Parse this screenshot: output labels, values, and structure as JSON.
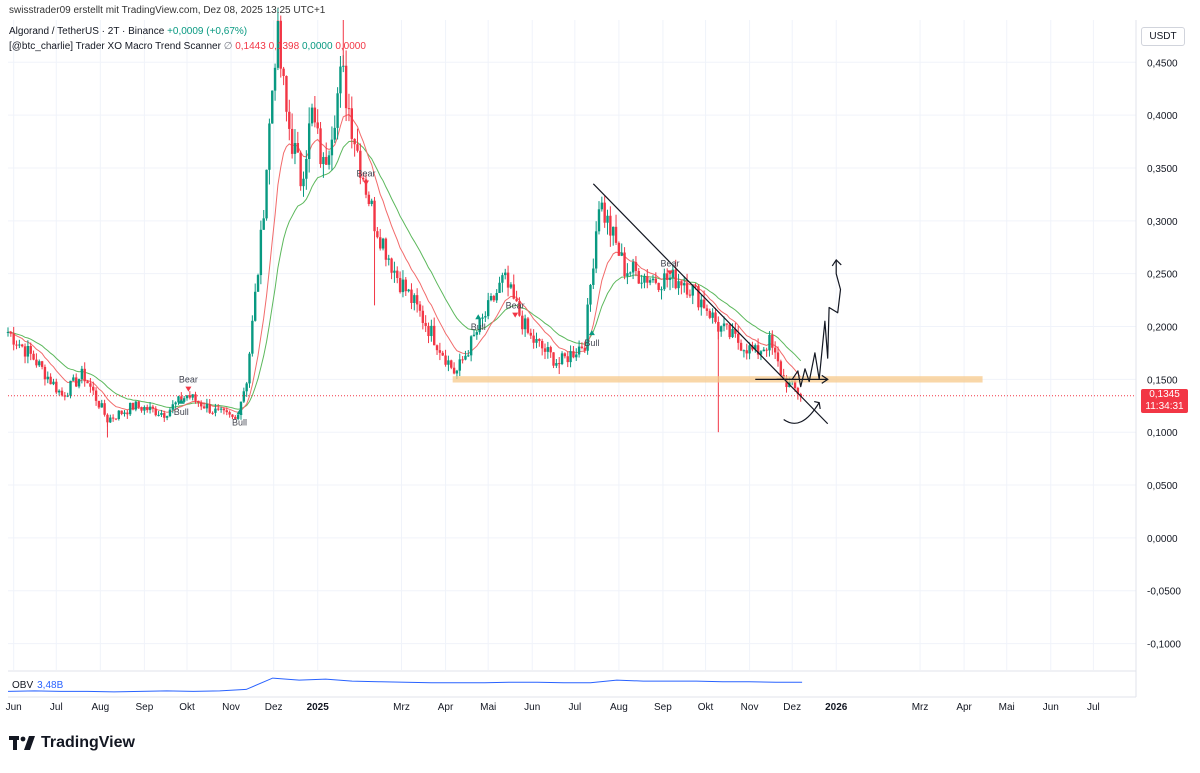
{
  "header": {
    "credit": "swisstrader09 erstellt mit TradingView.com, Dez 08, 2025 13:25 UTC+1",
    "symbol": "Algorand / TetherUS · 2T · Binance",
    "change": "+0,0009 (+0,67%)",
    "indicator": "[@btc_charlie] Trader XO Macro Trend Scanner",
    "indicator_values": [
      "0,1443",
      "0,1398",
      "0,0000",
      "0,0000"
    ]
  },
  "currency_badge": "USDT",
  "price_badge": {
    "price": "0,1345",
    "countdown": "11:34:31"
  },
  "obv": {
    "label": "OBV",
    "value": "3,48B"
  },
  "footer": {
    "brand": "TradingView"
  },
  "colors": {
    "up": "#089981",
    "down": "#f23645",
    "fast_ema": "#f26b6b",
    "slow_ema": "#5cb85c",
    "support_zone": "#f7c98b",
    "obv": "#2962ff",
    "grid": "#f0f3fa"
  },
  "chart_data": {
    "type": "line",
    "series_kind": "candlestick",
    "title": "Algorand / TetherUS · 2T · Binance",
    "xlabel": "",
    "ylabel": "",
    "ylim": [
      -0.125,
      0.49
    ],
    "xlim": [
      "2024-05-28",
      "2026-07-31"
    ],
    "y_ticks": [
      "0,4500",
      "0,4000",
      "0,3500",
      "0,3000",
      "0,2500",
      "0,2000",
      "0,1500",
      "0,1000",
      "0,0500",
      "0,0000",
      "-0,0500",
      "-0,1000"
    ],
    "y_tick_values": [
      0.45,
      0.4,
      0.35,
      0.3,
      0.25,
      0.2,
      0.15,
      0.1,
      0.05,
      0.0,
      -0.05,
      -0.1
    ],
    "x_ticks": [
      {
        "label": "Jun",
        "date": "2024-06-01"
      },
      {
        "label": "Jul",
        "date": "2024-07-01"
      },
      {
        "label": "Aug",
        "date": "2024-08-01"
      },
      {
        "label": "Sep",
        "date": "2024-09-01"
      },
      {
        "label": "Okt",
        "date": "2024-10-01"
      },
      {
        "label": "Nov",
        "date": "2024-11-01"
      },
      {
        "label": "Dez",
        "date": "2024-12-01"
      },
      {
        "label": "2025",
        "date": "2025-01-01",
        "bold": true
      },
      {
        "label": "Mrz",
        "date": "2025-03-01"
      },
      {
        "label": "Apr",
        "date": "2025-04-01"
      },
      {
        "label": "Mai",
        "date": "2025-05-01"
      },
      {
        "label": "Jun",
        "date": "2025-06-01"
      },
      {
        "label": "Jul",
        "date": "2025-07-01"
      },
      {
        "label": "Aug",
        "date": "2025-08-01"
      },
      {
        "label": "Sep",
        "date": "2025-09-01"
      },
      {
        "label": "Okt",
        "date": "2025-10-01"
      },
      {
        "label": "Nov",
        "date": "2025-11-01"
      },
      {
        "label": "Dez",
        "date": "2025-12-01"
      },
      {
        "label": "2026",
        "date": "2026-01-01",
        "bold": true
      },
      {
        "label": "Mrz",
        "date": "2026-03-01"
      },
      {
        "label": "Apr",
        "date": "2026-04-01"
      },
      {
        "label": "Mai",
        "date": "2026-05-01"
      },
      {
        "label": "Jun",
        "date": "2026-06-01"
      },
      {
        "label": "Jul",
        "date": "2026-07-01"
      }
    ],
    "price_path": [
      {
        "date": "2024-05-28",
        "price": 0.195
      },
      {
        "date": "2024-06-15",
        "price": 0.17
      },
      {
        "date": "2024-07-05",
        "price": 0.135
      },
      {
        "date": "2024-07-20",
        "price": 0.155
      },
      {
        "date": "2024-08-06",
        "price": 0.112
      },
      {
        "date": "2024-08-25",
        "price": 0.125
      },
      {
        "date": "2024-09-15",
        "price": 0.118
      },
      {
        "date": "2024-10-01",
        "price": 0.135
      },
      {
        "date": "2024-10-20",
        "price": 0.12
      },
      {
        "date": "2024-11-04",
        "price": 0.112
      },
      {
        "date": "2024-11-12",
        "price": 0.15
      },
      {
        "date": "2024-11-22",
        "price": 0.28
      },
      {
        "date": "2024-12-03",
        "price": 0.48
      },
      {
        "date": "2024-12-10",
        "price": 0.4
      },
      {
        "date": "2024-12-20",
        "price": 0.34
      },
      {
        "date": "2024-12-28",
        "price": 0.4
      },
      {
        "date": "2025-01-05",
        "price": 0.35
      },
      {
        "date": "2025-01-18",
        "price": 0.44
      },
      {
        "date": "2025-01-30",
        "price": 0.36
      },
      {
        "date": "2025-02-10",
        "price": 0.3
      },
      {
        "date": "2025-02-25",
        "price": 0.25
      },
      {
        "date": "2025-03-15",
        "price": 0.21
      },
      {
        "date": "2025-04-08",
        "price": 0.155
      },
      {
        "date": "2025-04-25",
        "price": 0.2
      },
      {
        "date": "2025-05-12",
        "price": 0.245
      },
      {
        "date": "2025-05-30",
        "price": 0.19
      },
      {
        "date": "2025-06-20",
        "price": 0.165
      },
      {
        "date": "2025-07-08",
        "price": 0.185
      },
      {
        "date": "2025-07-18",
        "price": 0.32
      },
      {
        "date": "2025-08-05",
        "price": 0.255
      },
      {
        "date": "2025-08-25",
        "price": 0.245
      },
      {
        "date": "2025-09-15",
        "price": 0.245
      },
      {
        "date": "2025-10-01",
        "price": 0.22
      },
      {
        "date": "2025-10-10",
        "price": 0.2
      },
      {
        "date": "2025-10-25",
        "price": 0.185
      },
      {
        "date": "2025-11-05",
        "price": 0.175
      },
      {
        "date": "2025-11-15",
        "price": 0.185
      },
      {
        "date": "2025-11-25",
        "price": 0.15
      },
      {
        "date": "2025-12-08",
        "price": 0.1345
      }
    ],
    "wicks": [
      {
        "date": "2025-10-10",
        "low": 0.1
      },
      {
        "date": "2024-08-06",
        "low": 0.095
      },
      {
        "date": "2024-12-04",
        "high": 0.49
      },
      {
        "date": "2025-01-19",
        "high": 0.49
      },
      {
        "date": "2025-02-10",
        "low": 0.22
      },
      {
        "date": "2025-06-20",
        "low": 0.155
      }
    ],
    "signals": [
      {
        "text": "Bear",
        "date": "2024-10-02",
        "price": 0.145,
        "kind": "bear"
      },
      {
        "text": "Bull",
        "date": "2024-09-27",
        "price": 0.125,
        "kind": "bull"
      },
      {
        "text": "Bull",
        "date": "2024-11-07",
        "price": 0.115,
        "kind": "bull"
      },
      {
        "text": "Bear",
        "date": "2025-02-04",
        "price": 0.34,
        "kind": "bear"
      },
      {
        "text": "Bull",
        "date": "2025-04-24",
        "price": 0.205,
        "kind": "bull"
      },
      {
        "text": "Bear",
        "date": "2025-05-20",
        "price": 0.215,
        "kind": "bear"
      },
      {
        "text": "Bull",
        "date": "2025-07-13",
        "price": 0.19,
        "kind": "bull"
      },
      {
        "text": "Bear",
        "date": "2025-09-06",
        "price": 0.255,
        "kind": "bear"
      }
    ],
    "drawings": {
      "trendline": {
        "start": {
          "date": "2025-07-14",
          "price": 0.335
        },
        "end": {
          "date": "2025-12-26",
          "price": 0.108
        }
      },
      "support_zone": {
        "start": "2025-04-06",
        "end": "2026-04-14",
        "top": 0.153,
        "bottom": 0.147
      },
      "current_price_line": 0.1345
    },
    "obv_path": [
      3.3,
      3.31,
      3.3,
      3.3,
      3.29,
      3.3,
      3.31,
      3.3,
      3.31,
      3.34,
      3.56,
      3.52,
      3.54,
      3.5,
      3.49,
      3.48,
      3.47,
      3.47,
      3.47,
      3.48,
      3.48,
      3.47,
      3.47,
      3.52,
      3.5,
      3.5,
      3.5,
      3.49,
      3.49,
      3.48,
      3.48
    ]
  }
}
